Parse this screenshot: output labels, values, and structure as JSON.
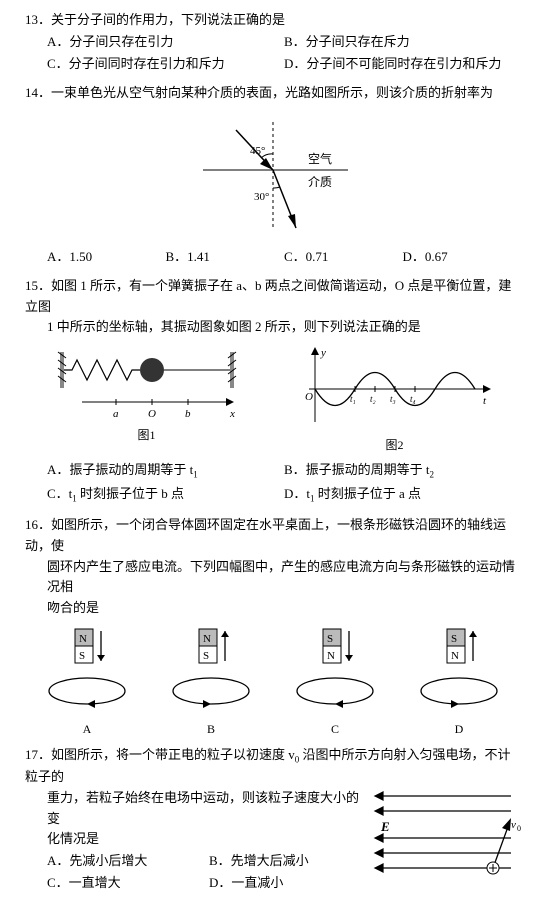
{
  "q13": {
    "num": "13．",
    "stem": "关于分子间的作用力，下列说法正确的是",
    "opts": {
      "A": "A．分子间只存在引力",
      "B": "B．分子间只存在斥力",
      "C": "C．分子间同时存在引力和斥力",
      "D": "D．分子间不可能同时存在引力和斥力"
    }
  },
  "q14": {
    "num": "14．",
    "stem": "一束单色光从空气射向某种介质的表面，光路如图所示，则该介质的折射率为",
    "opts": {
      "A": "A．1.50",
      "B": "B．1.41",
      "C": "C．0.71",
      "D": "D．0.67"
    },
    "fig": {
      "angle1": "45°",
      "angle2": "30°",
      "top": "空气",
      "bottom": "介质"
    }
  },
  "q15": {
    "num": "15．",
    "stem_a": "如图 1 所示，有一个弹簧振子在 a、b 两点之间做简谐运动，O 点是平衡位置，建立图",
    "stem_b": "1 中所示的坐标轴，其振动图象如图 2 所示，则下列说法正确的是",
    "fig1_label": "图1",
    "fig2_label": "图2",
    "fig1": {
      "a": "a",
      "o": "O",
      "b": "b",
      "x": "x"
    },
    "fig2": {
      "y": "y",
      "t": "t",
      "o": "O",
      "ticks": [
        "t₁",
        "t₂",
        "t₃",
        "t₄"
      ]
    },
    "opts": {
      "A_pre": "A．振子振动的周期等于 t",
      "A_sub": "1",
      "B_pre": "B．振子振动的周期等于 t",
      "B_sub": "2",
      "C_pre": "C．t",
      "C_sub": "1",
      "C_post": " 时刻振子位于 b 点",
      "D_pre": "D．t",
      "D_sub": "1",
      "D_post": " 时刻振子位于 a 点"
    }
  },
  "q16": {
    "num": "16．",
    "stem_a": "如图所示，一个闭合导体圆环固定在水平桌面上，一根条形磁铁沿圆环的轴线运动，使",
    "stem_b": "圆环内产生了感应电流。下列四幅图中，产生的感应电流方向与条形磁铁的运动情况相",
    "stem_c": "吻合的是",
    "labels": {
      "A": "A",
      "B": "B",
      "C": "C",
      "D": "D"
    },
    "magnets": {
      "A": {
        "top": "N",
        "bot": "S",
        "arrow": "down"
      },
      "B": {
        "top": "N",
        "bot": "S",
        "arrow": "up"
      },
      "C": {
        "top": "S",
        "bot": "N",
        "arrow": "down"
      },
      "D": {
        "top": "S",
        "bot": "N",
        "arrow": "up"
      }
    }
  },
  "q17": {
    "num": "17．",
    "stem_a_pre": "如图所示，将一个带正电的粒子以初速度 v",
    "stem_a_sub": "0",
    "stem_a_post": " 沿图中所示方向射入匀强电场，不计粒子的",
    "stem_b": "重力，若粒子始终在电场中运动，则该粒子速度大小的变",
    "stem_c": "化情况是",
    "opts": {
      "A": "A．先减小后增大",
      "B": "B．先增大后减小",
      "C": "C．一直增大",
      "D": "D．一直减小"
    },
    "fig": {
      "E": "E",
      "v0_pre": "v",
      "v0_sub": "0",
      "plus": "⊕"
    }
  }
}
